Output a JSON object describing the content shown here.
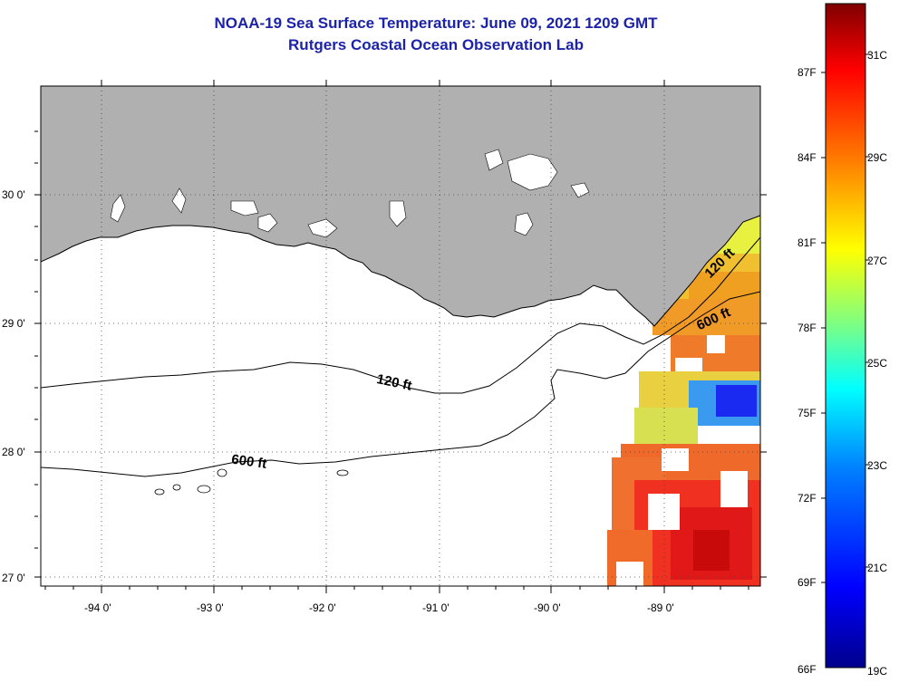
{
  "title": {
    "line1": "NOAA-19 Sea Surface Temperature:  June 09, 2021 1209 GMT",
    "line2": "Rutgers Coastal Ocean Observation Lab"
  },
  "map": {
    "lat_labels": [
      "30 0'",
      "29 0'",
      "28 0'",
      "27 0'"
    ],
    "lon_labels": [
      "-94 0'",
      "-93 0'",
      "-92 0'",
      "-91 0'",
      "-90 0'",
      "-89 0'"
    ],
    "lon_range": [
      -94.5,
      -88.3
    ],
    "lat_range": [
      26.95,
      30.85
    ],
    "contour_labels": [
      {
        "text": "120 ft",
        "isobath": "west-shelf"
      },
      {
        "text": "600 ft",
        "isobath": "west-slope"
      },
      {
        "text": "120 ft",
        "isobath": "east-shelf"
      },
      {
        "text": "600 ft",
        "isobath": "east-slope"
      }
    ],
    "land_color": "#b0b0b0",
    "grid": "dotted"
  },
  "colorbar": {
    "fahrenheit_labels": [
      "87F",
      "84F",
      "81F",
      "78F",
      "75F",
      "72F",
      "69F",
      "66F"
    ],
    "celsius_labels": [
      "31C",
      "29C",
      "27C",
      "25C",
      "23C",
      "21C",
      "19C"
    ],
    "range_c": [
      19,
      32
    ],
    "colors": [
      "#00008c",
      "#0000ff",
      "#0080ff",
      "#00ffff",
      "#80ff80",
      "#ffff00",
      "#ff8000",
      "#ff0000",
      "#800000"
    ]
  }
}
